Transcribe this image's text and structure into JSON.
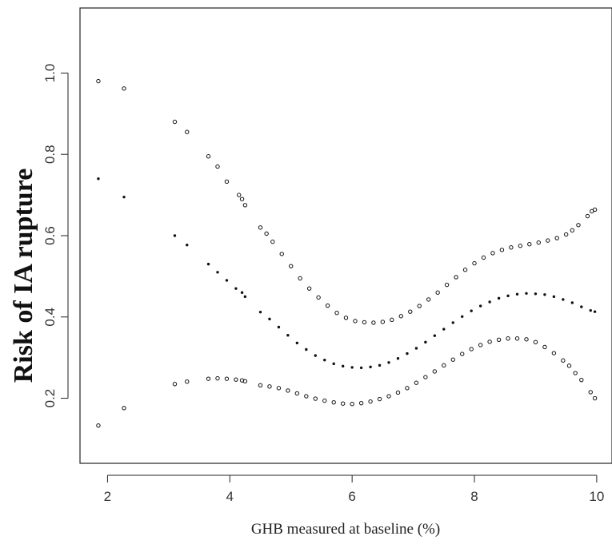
{
  "chart_data": {
    "type": "scatter",
    "title": "",
    "xlabel": "GHB measured at baseline (%)",
    "ylabel": "Risk of IA rupture",
    "xlim": [
      1.55,
      10.25
    ],
    "ylim": [
      0.04,
      1.16
    ],
    "x_ticks": [
      2,
      4,
      6,
      8,
      10
    ],
    "x_tick_labels": [
      "2",
      "4",
      "6",
      "8",
      "10"
    ],
    "y_ticks": [
      0.2,
      0.4,
      0.6,
      0.8,
      1.0
    ],
    "y_tick_labels": [
      "0.2",
      "0.4",
      "0.6",
      "0.8",
      "1.0"
    ],
    "grid": false,
    "series": [
      {
        "marker": "open-circle",
        "points": [
          [
            1.85,
            0.98
          ],
          [
            2.27,
            0.962
          ],
          [
            3.1,
            0.88
          ],
          [
            3.3,
            0.855
          ],
          [
            3.65,
            0.795
          ],
          [
            3.8,
            0.77
          ],
          [
            3.95,
            0.733
          ],
          [
            4.15,
            0.7
          ],
          [
            4.2,
            0.69
          ],
          [
            4.25,
            0.675
          ],
          [
            4.5,
            0.62
          ],
          [
            4.6,
            0.605
          ],
          [
            4.7,
            0.585
          ],
          [
            4.85,
            0.555
          ],
          [
            5.0,
            0.525
          ],
          [
            5.15,
            0.495
          ],
          [
            5.3,
            0.47
          ],
          [
            5.45,
            0.448
          ],
          [
            5.6,
            0.428
          ],
          [
            5.75,
            0.41
          ],
          [
            5.9,
            0.398
          ],
          [
            6.05,
            0.39
          ],
          [
            6.2,
            0.387
          ],
          [
            6.35,
            0.386
          ],
          [
            6.5,
            0.388
          ],
          [
            6.65,
            0.393
          ],
          [
            6.8,
            0.402
          ],
          [
            6.95,
            0.413
          ],
          [
            7.1,
            0.427
          ],
          [
            7.25,
            0.443
          ],
          [
            7.4,
            0.46
          ],
          [
            7.55,
            0.479
          ],
          [
            7.7,
            0.498
          ],
          [
            7.85,
            0.516
          ],
          [
            8.0,
            0.532
          ],
          [
            8.15,
            0.546
          ],
          [
            8.3,
            0.557
          ],
          [
            8.45,
            0.565
          ],
          [
            8.6,
            0.571
          ],
          [
            8.75,
            0.575
          ],
          [
            8.9,
            0.579
          ],
          [
            9.05,
            0.583
          ],
          [
            9.2,
            0.588
          ],
          [
            9.35,
            0.594
          ],
          [
            9.5,
            0.603
          ],
          [
            9.6,
            0.613
          ],
          [
            9.7,
            0.626
          ],
          [
            9.85,
            0.648
          ],
          [
            9.92,
            0.66
          ],
          [
            9.97,
            0.664
          ]
        ]
      },
      {
        "marker": "dot",
        "points": [
          [
            1.85,
            0.74
          ],
          [
            2.27,
            0.695
          ],
          [
            3.1,
            0.6
          ],
          [
            3.3,
            0.577
          ],
          [
            3.65,
            0.53
          ],
          [
            3.8,
            0.51
          ],
          [
            3.95,
            0.49
          ],
          [
            4.1,
            0.47
          ],
          [
            4.2,
            0.46
          ],
          [
            4.25,
            0.45
          ],
          [
            4.5,
            0.412
          ],
          [
            4.65,
            0.395
          ],
          [
            4.8,
            0.375
          ],
          [
            4.95,
            0.355
          ],
          [
            5.1,
            0.336
          ],
          [
            5.25,
            0.32
          ],
          [
            5.4,
            0.305
          ],
          [
            5.55,
            0.294
          ],
          [
            5.7,
            0.285
          ],
          [
            5.85,
            0.279
          ],
          [
            6.0,
            0.276
          ],
          [
            6.15,
            0.275
          ],
          [
            6.3,
            0.277
          ],
          [
            6.45,
            0.281
          ],
          [
            6.6,
            0.288
          ],
          [
            6.75,
            0.298
          ],
          [
            6.9,
            0.31
          ],
          [
            7.05,
            0.323
          ],
          [
            7.2,
            0.338
          ],
          [
            7.35,
            0.354
          ],
          [
            7.5,
            0.37
          ],
          [
            7.65,
            0.386
          ],
          [
            7.8,
            0.401
          ],
          [
            7.95,
            0.415
          ],
          [
            8.1,
            0.427
          ],
          [
            8.25,
            0.437
          ],
          [
            8.4,
            0.446
          ],
          [
            8.55,
            0.452
          ],
          [
            8.7,
            0.456
          ],
          [
            8.85,
            0.458
          ],
          [
            9.0,
            0.457
          ],
          [
            9.15,
            0.455
          ],
          [
            9.3,
            0.45
          ],
          [
            9.45,
            0.443
          ],
          [
            9.6,
            0.435
          ],
          [
            9.75,
            0.425
          ],
          [
            9.9,
            0.416
          ],
          [
            9.97,
            0.413
          ]
        ]
      },
      {
        "marker": "open-circle",
        "points": [
          [
            1.85,
            0.133
          ],
          [
            2.27,
            0.176
          ],
          [
            3.1,
            0.235
          ],
          [
            3.3,
            0.241
          ],
          [
            3.65,
            0.248
          ],
          [
            3.8,
            0.249
          ],
          [
            3.95,
            0.248
          ],
          [
            4.1,
            0.246
          ],
          [
            4.2,
            0.244
          ],
          [
            4.25,
            0.242
          ],
          [
            4.5,
            0.232
          ],
          [
            4.65,
            0.229
          ],
          [
            4.8,
            0.225
          ],
          [
            4.95,
            0.219
          ],
          [
            5.1,
            0.212
          ],
          [
            5.25,
            0.205
          ],
          [
            5.4,
            0.199
          ],
          [
            5.55,
            0.194
          ],
          [
            5.7,
            0.19
          ],
          [
            5.85,
            0.187
          ],
          [
            6.0,
            0.186
          ],
          [
            6.15,
            0.188
          ],
          [
            6.3,
            0.192
          ],
          [
            6.45,
            0.198
          ],
          [
            6.6,
            0.205
          ],
          [
            6.75,
            0.214
          ],
          [
            6.9,
            0.225
          ],
          [
            7.05,
            0.238
          ],
          [
            7.2,
            0.252
          ],
          [
            7.35,
            0.266
          ],
          [
            7.5,
            0.281
          ],
          [
            7.65,
            0.295
          ],
          [
            7.8,
            0.309
          ],
          [
            7.95,
            0.321
          ],
          [
            8.1,
            0.331
          ],
          [
            8.25,
            0.339
          ],
          [
            8.4,
            0.344
          ],
          [
            8.55,
            0.347
          ],
          [
            8.7,
            0.347
          ],
          [
            8.85,
            0.345
          ],
          [
            9.0,
            0.338
          ],
          [
            9.15,
            0.326
          ],
          [
            9.3,
            0.311
          ],
          [
            9.45,
            0.293
          ],
          [
            9.55,
            0.28
          ],
          [
            9.65,
            0.262
          ],
          [
            9.75,
            0.245
          ],
          [
            9.9,
            0.215
          ],
          [
            9.97,
            0.2
          ]
        ]
      }
    ]
  }
}
